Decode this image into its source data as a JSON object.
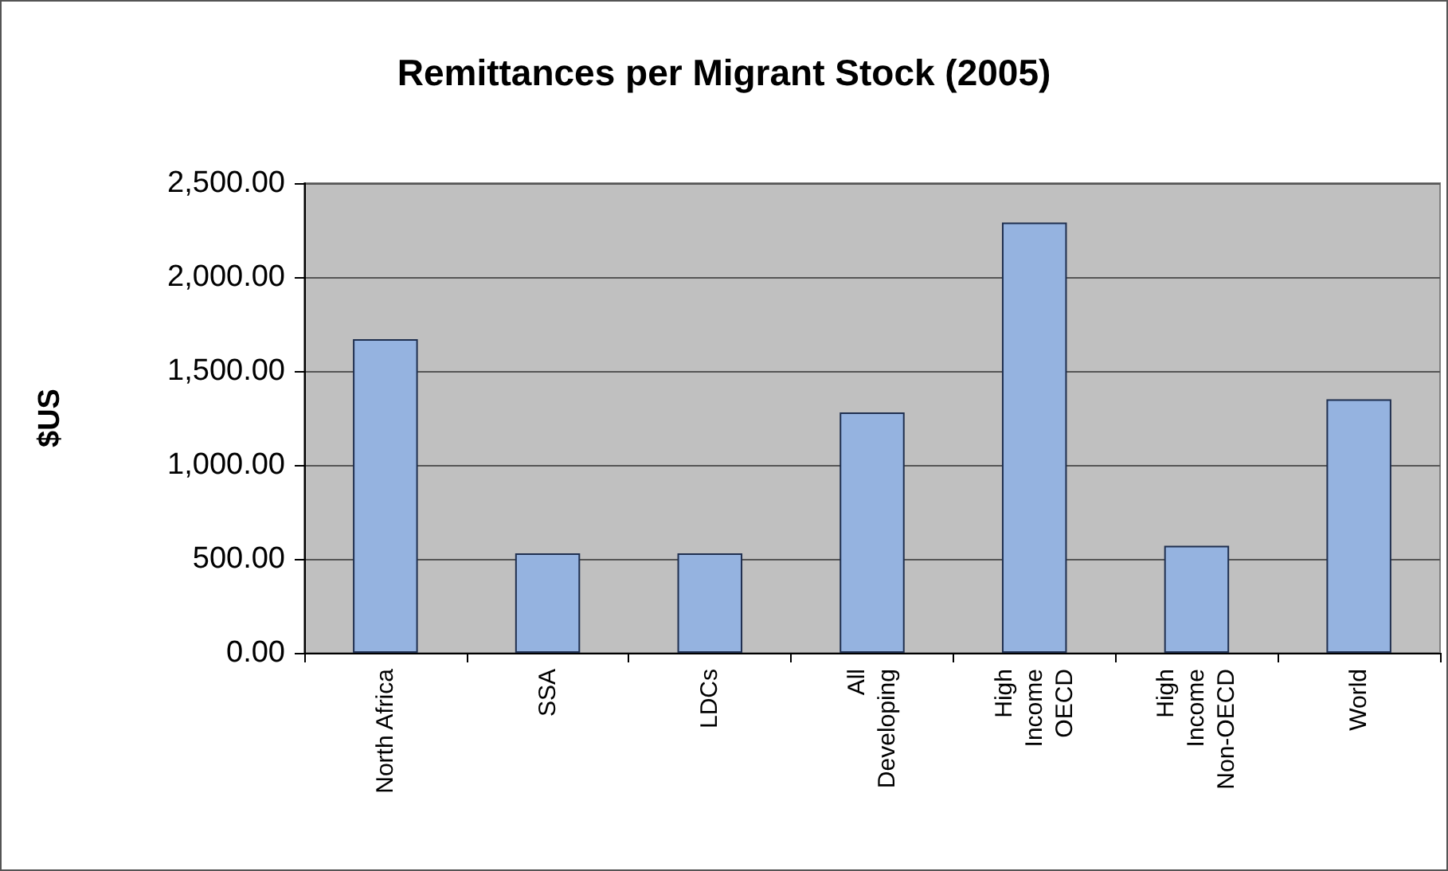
{
  "chart_data": {
    "type": "bar",
    "title": "Remittances per Migrant Stock (2005)",
    "ylabel": "$US",
    "categories": [
      "North Africa",
      "SSA",
      "LDCs",
      "All\nDeveloping",
      "High\nIncome\nOECD",
      "High\nIncome\nNon-OECD",
      "World"
    ],
    "values": [
      1670,
      530,
      530,
      1280,
      2290,
      570,
      1350
    ],
    "color": "#95b3e0",
    "ylim": [
      0,
      2500
    ],
    "yticks": [
      {
        "value": 0,
        "label": "0.00"
      },
      {
        "value": 500,
        "label": "500.00"
      },
      {
        "value": 1000,
        "label": "1,000.00"
      },
      {
        "value": 1500,
        "label": "1,500.00"
      },
      {
        "value": 2000,
        "label": "2,000.00"
      },
      {
        "value": 2500,
        "label": "2,500.00"
      }
    ],
    "grid": "y"
  }
}
